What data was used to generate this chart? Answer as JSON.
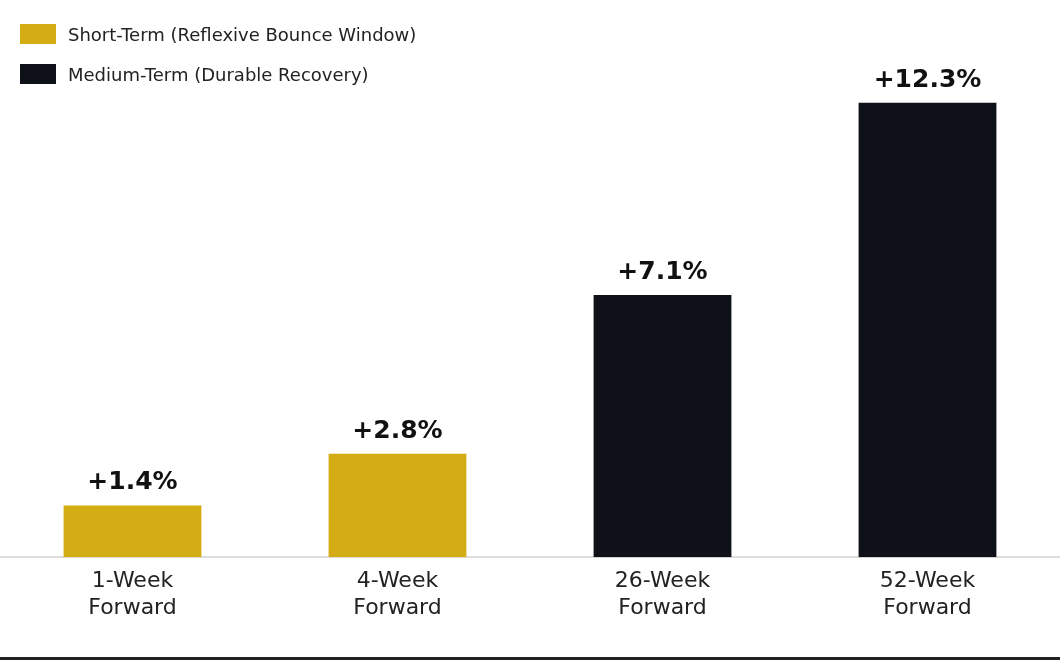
{
  "chart_data": {
    "type": "bar",
    "categories": [
      "1-Week Forward",
      "4-Week Forward",
      "26-Week Forward",
      "52-Week Forward"
    ],
    "series": [
      {
        "name": "Short-Term (Reflexive Bounce Window)",
        "color": "#d4ac13",
        "values": [
          1.4,
          2.8,
          null,
          null
        ],
        "value_labels": [
          "+1.4%",
          "+2.8%",
          null,
          null
        ]
      },
      {
        "name": "Medium-Term (Durable Recovery)",
        "color": "#0f1119",
        "values": [
          null,
          null,
          7.1,
          12.3
        ],
        "value_labels": [
          null,
          null,
          "+7.1%",
          "+12.3%"
        ]
      }
    ],
    "legend": "top left",
    "grid": false,
    "tick_labels": "x"
  }
}
